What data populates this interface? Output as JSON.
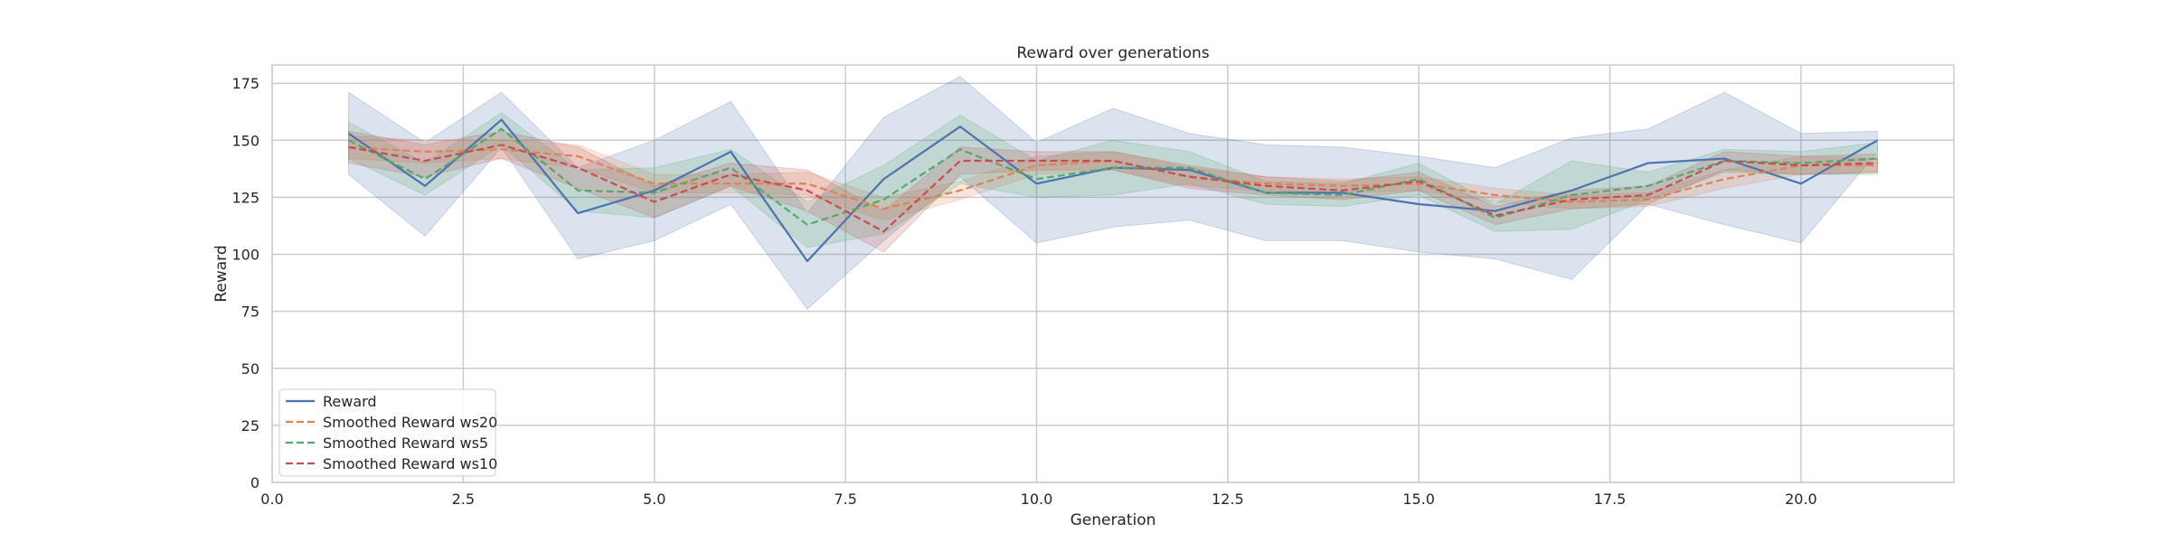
{
  "chart_data": {
    "type": "line",
    "title": "Reward over generations",
    "xlabel": "Generation",
    "ylabel": "Reward",
    "xlim": [
      0,
      22
    ],
    "ylim": [
      0,
      183
    ],
    "xticks": [
      0.0,
      2.5,
      5.0,
      7.5,
      10.0,
      12.5,
      15.0,
      17.5,
      20.0
    ],
    "xtick_labels": [
      "0.0",
      "2.5",
      "5.0",
      "7.5",
      "10.0",
      "12.5",
      "15.0",
      "17.5",
      "20.0"
    ],
    "yticks": [
      0,
      25,
      50,
      75,
      100,
      125,
      150,
      175
    ],
    "ytick_labels": [
      "0",
      "25",
      "50",
      "75",
      "100",
      "125",
      "150",
      "175"
    ],
    "grid": true,
    "legend_position": "lower-left",
    "x": [
      1,
      2,
      3,
      4,
      5,
      6,
      7,
      8,
      9,
      10,
      11,
      12,
      13,
      14,
      15,
      16,
      17,
      18,
      19,
      20,
      21
    ],
    "series": [
      {
        "name": "Reward",
        "color": "#4c72b0",
        "dash": "solid",
        "values": [
          153,
          130,
          159,
          118,
          128,
          145,
          97,
          133,
          156,
          131,
          138,
          137,
          127,
          127,
          122,
          119,
          128,
          140,
          142,
          131,
          150
        ],
        "band_upper": [
          171,
          149,
          171,
          138,
          150,
          167,
          118,
          160,
          178,
          149,
          164,
          153,
          148,
          147,
          143,
          138,
          151,
          155,
          171,
          153,
          154
        ],
        "band_lower": [
          135,
          108,
          147,
          98,
          106,
          122,
          76,
          106,
          134,
          105,
          112,
          115,
          106,
          106,
          101,
          98,
          89,
          122,
          113,
          105,
          145
        ]
      },
      {
        "name": "Smoothed Reward ws20",
        "color": "#dd8452",
        "dash": "dashed",
        "values": [
          147,
          145,
          146,
          143,
          131,
          131,
          131,
          120,
          128,
          139,
          141,
          134,
          131,
          130,
          131,
          126,
          123,
          124,
          133,
          139,
          139
        ],
        "band_upper": [
          152,
          150,
          150,
          148,
          135,
          135,
          136,
          125,
          132,
          143,
          145,
          138,
          134,
          133,
          134,
          129,
          126,
          127,
          137,
          143,
          142
        ],
        "band_lower": [
          142,
          140,
          142,
          138,
          127,
          127,
          126,
          115,
          124,
          135,
          137,
          130,
          128,
          127,
          128,
          123,
          120,
          121,
          129,
          135,
          136
        ]
      },
      {
        "name": "Smoothed Reward ws5",
        "color": "#55a868",
        "dash": "dashed",
        "values": [
          150,
          133,
          155,
          128,
          127,
          138,
          113,
          124,
          146,
          133,
          138,
          138,
          127,
          126,
          133,
          116,
          126,
          130,
          141,
          140,
          142
        ],
        "band_upper": [
          158,
          140,
          162,
          137,
          138,
          146,
          123,
          139,
          161,
          141,
          150,
          145,
          132,
          131,
          140,
          122,
          141,
          136,
          146,
          145,
          149
        ],
        "band_lower": [
          142,
          126,
          148,
          119,
          116,
          130,
          103,
          109,
          131,
          125,
          126,
          131,
          122,
          121,
          126,
          110,
          111,
          124,
          136,
          135,
          135
        ]
      },
      {
        "name": "Smoothed Reward ws10",
        "color": "#c44e52",
        "dash": "dashed",
        "values": [
          147,
          141,
          148,
          138,
          123,
          135,
          128,
          110,
          141,
          141,
          141,
          134,
          130,
          128,
          132,
          117,
          124,
          126,
          141,
          139,
          140
        ],
        "band_upper": [
          154,
          148,
          154,
          147,
          130,
          140,
          137,
          119,
          147,
          145,
          145,
          139,
          134,
          132,
          136,
          121,
          128,
          130,
          145,
          143,
          144
        ],
        "band_lower": [
          140,
          134,
          142,
          129,
          116,
          130,
          119,
          101,
          135,
          137,
          137,
          129,
          126,
          124,
          128,
          113,
          120,
          122,
          137,
          135,
          136
        ]
      }
    ]
  }
}
